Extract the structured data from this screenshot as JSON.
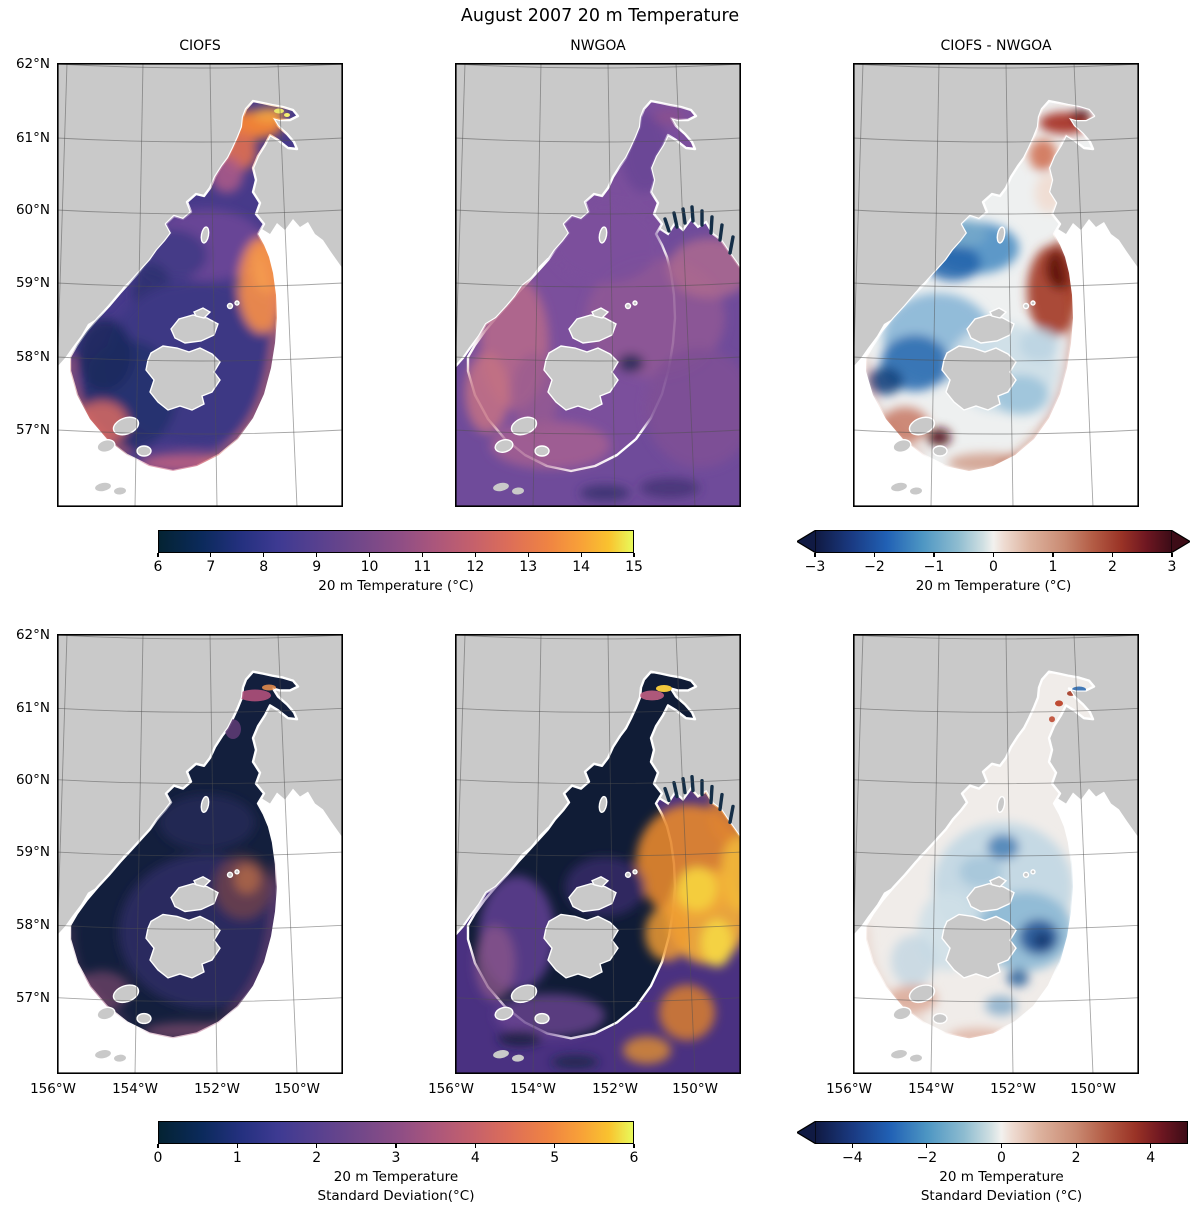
{
  "figure": {
    "title": "August 2007 20 m Temperature"
  },
  "panels": [
    {
      "id": "ciofs-temp",
      "title": "CIOFS"
    },
    {
      "id": "nwgoa-temp",
      "title": "NWGOA"
    },
    {
      "id": "diff-temp",
      "title": "CIOFS - NWGOA"
    },
    {
      "id": "ciofs-std",
      "title": ""
    },
    {
      "id": "nwgoa-std",
      "title": ""
    },
    {
      "id": "diff-std",
      "title": ""
    }
  ],
  "axes": {
    "lat_labels": [
      "62°N",
      "61°N",
      "60°N",
      "59°N",
      "58°N",
      "57°N"
    ],
    "lon_labels": [
      "156°W",
      "154°W",
      "152°W",
      "150°W"
    ]
  },
  "colorbars": [
    {
      "id": "temp",
      "caption": "20 m Temperature (°C)",
      "ticks": [
        "6",
        "7",
        "8",
        "9",
        "10",
        "11",
        "12",
        "13",
        "14",
        "15"
      ],
      "cmap": "thermal",
      "extend": "neither"
    },
    {
      "id": "temp-diff",
      "caption": "20 m Temperature (°C)",
      "ticks": [
        "−3",
        "−2",
        "−1",
        "0",
        "1",
        "2",
        "3"
      ],
      "cmap": "balance",
      "extend": "both"
    },
    {
      "id": "std",
      "caption_line1": "20 m Temperature",
      "caption_line2": "Standard Deviation(°C)",
      "ticks": [
        "0",
        "1",
        "2",
        "3",
        "4",
        "5",
        "6"
      ],
      "cmap": "thermal",
      "extend": "neither"
    },
    {
      "id": "std-diff",
      "caption_line1": "20 m Temperature",
      "caption_line2": "Standard Deviation (°C)",
      "ticks": [
        "−4",
        "−2",
        "0",
        "2",
        "4"
      ],
      "cmap": "balance",
      "extend": "min"
    }
  ],
  "colors": {
    "land": "#c9c9c9",
    "ocean_outside": "#ffffff",
    "grid": "rgba(80,80,80,0.5)",
    "border": "#000000",
    "coast_fringe": "#ffffff",
    "fjord_dark": "#142e47",
    "thermal_start": "#042333",
    "thermal_end": "#e8fa5b",
    "balance_start": "#101a43",
    "balance_end": "#3d0c17"
  },
  "chart_data": {
    "type": "heatmap",
    "figure_title": "August 2007 20 m Temperature",
    "projection": "conic map of Cook Inlet / Gulf of Alaska",
    "lon_ticks_deg_w": [
      156,
      154,
      152,
      150
    ],
    "lat_ticks_deg_n": [
      62,
      61,
      60,
      59,
      58,
      57
    ],
    "grid": true,
    "panels": [
      {
        "title": "CIOFS",
        "quantity": "20 m Temperature (°C)",
        "colormap": "thermal",
        "vmin": 6,
        "vmax": 15,
        "summary": "CIOFS model domain only (Cook Inlet plus fan-shaped southern boundary around Kodiak): 12-15 °C at the inlet head near 61°N, 7-9 °C through the central inlet and fan, 11-13 °C warm band along the eastern open boundary near the Kenai coast and along the south-west rim."
      },
      {
        "title": "NWGOA",
        "quantity": "20 m Temperature (°C)",
        "colormap": "thermal",
        "vmin": 6,
        "vmax": 15,
        "summary": "Full Gulf of Alaska ocean mostly 8-11 °C purple/mauve, pink 10-11 °C nearshore band along the Alaska Peninsula, dark 6-7 °C fjords on the northeast coast, inlet ~9-10 °C."
      },
      {
        "title": "CIOFS - NWGOA",
        "quantity": "20 m Temperature difference (°C)",
        "colormap": "balance",
        "vmin": -3,
        "vmax": 3,
        "extend": "both",
        "summary": "CIOFS warmer by +1 to +3 °C at the inlet head and along the eastern/southern open boundary; cooler by -1 to -3 °C along the western inlet and Shelikof Strait; near zero elsewhere."
      },
      {
        "title": "",
        "quantity": "20 m Temperature Standard Deviation (°C)",
        "colormap": "thermal",
        "vmin": 0,
        "vmax": 6,
        "summary": "CIOFS standard deviation mostly below 1 °C (very dark), about 1-2 °C in the outer fan and along the southern boundary arc."
      },
      {
        "title": "",
        "quantity": "20 m Temperature Standard Deviation (°C)",
        "colormap": "thermal",
        "vmin": 0,
        "vmax": 6,
        "summary": "NWGOA standard deviation ~1-2 °C inshore and in the inlet (dark), large patches of 3-6 °C (orange/yellow) offshore in the Gulf of Alaska east and south of Kodiak."
      },
      {
        "title": "",
        "quantity": "Standard deviation difference CIOFS - NWGOA (°C)",
        "colormap": "balance",
        "vmin": -5,
        "vmax": 5,
        "extend": "min",
        "summary": "Mostly 0 to -2 °C (NWGOA more variable), strongest negative -4 to -5 °C east of Kodiak near 58°N 151°W; scattered small positive cells in upper Cook Inlet and along the south-west rim."
      }
    ]
  }
}
